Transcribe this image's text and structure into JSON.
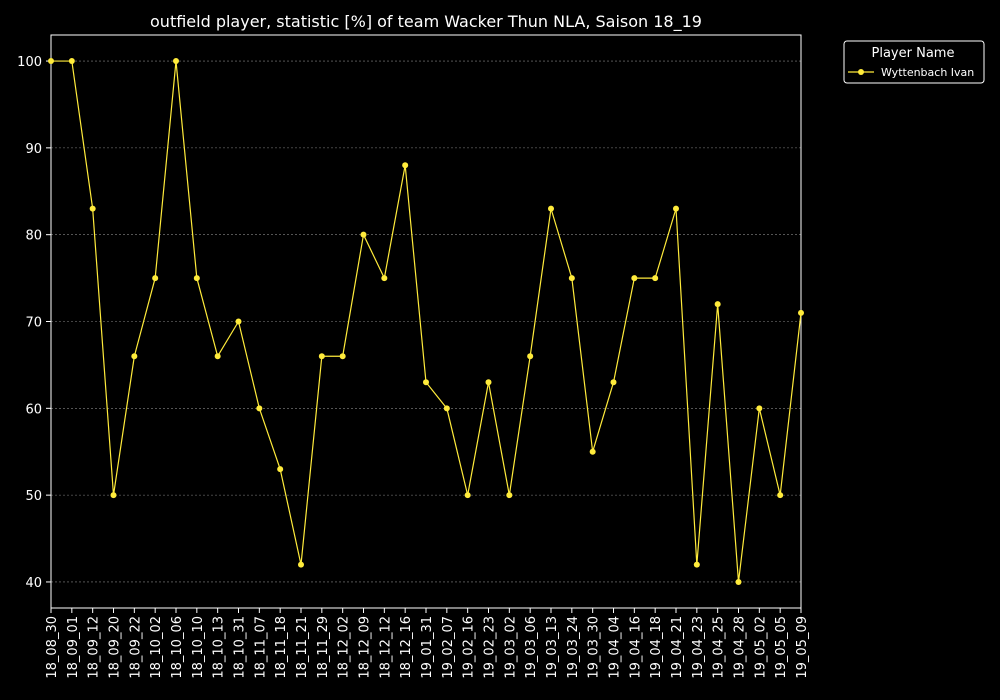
{
  "chart_data": {
    "type": "line",
    "title": "outfield player, statistic [%] of team Wacker Thun NLA, Saison 18_19",
    "xlabel": "",
    "ylabel": "",
    "ylim": [
      37,
      103
    ],
    "yticks": [
      40,
      50,
      60,
      70,
      80,
      90,
      100
    ],
    "grid": true,
    "legend": {
      "title": "Player Name",
      "position": "outside-top-right"
    },
    "categories": [
      "18_08_30",
      "18_09_01",
      "18_09_12",
      "18_09_20",
      "18_09_22",
      "18_10_02",
      "18_10_06",
      "18_10_10",
      "18_10_13",
      "18_10_31",
      "18_11_07",
      "18_11_18",
      "18_11_21",
      "18_11_29",
      "18_12_02",
      "18_12_09",
      "18_12_12",
      "18_12_16",
      "19_01_31",
      "19_02_07",
      "19_02_16",
      "19_02_23",
      "19_03_02",
      "19_03_06",
      "19_03_13",
      "19_03_24",
      "19_03_30",
      "19_04_04",
      "19_04_16",
      "19_04_18",
      "19_04_21",
      "19_04_23",
      "19_04_25",
      "19_04_28",
      "19_05_02",
      "19_05_05",
      "19_05_09"
    ],
    "series": [
      {
        "name": "Wyttenbach Ivan",
        "color": "#ffeb3b",
        "values": [
          100,
          100,
          83,
          50,
          66,
          75,
          100,
          75,
          66,
          70,
          60,
          53,
          42,
          66,
          66,
          80,
          75,
          88,
          63,
          60,
          50,
          63,
          50,
          66,
          83,
          75,
          55,
          63,
          75,
          75,
          83,
          42,
          72,
          40,
          60,
          50,
          71
        ]
      }
    ]
  },
  "colors": {
    "background": "#000000",
    "axes": "#ffffff",
    "grid": "#888888",
    "line": "#ffeb3b"
  }
}
